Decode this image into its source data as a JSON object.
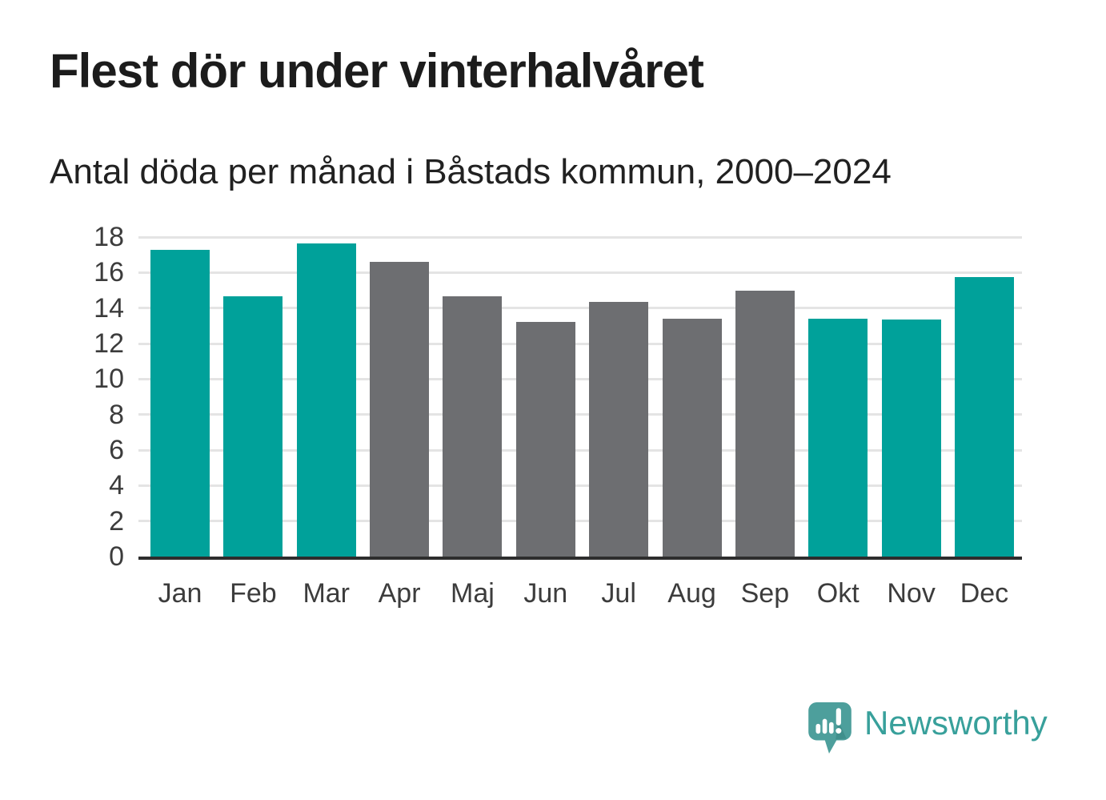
{
  "chart_data": {
    "type": "bar",
    "title": "Flest dör under vinterhalvåret",
    "subtitle": "Antal döda per månad i Båstads kommun, 2000–2024",
    "categories": [
      "Jan",
      "Feb",
      "Mar",
      "Apr",
      "Maj",
      "Jun",
      "Jul",
      "Aug",
      "Sep",
      "Okt",
      "Nov",
      "Dec"
    ],
    "values": [
      17.3,
      14.65,
      17.65,
      16.6,
      14.65,
      13.2,
      14.35,
      13.4,
      15.0,
      13.4,
      13.35,
      15.75
    ],
    "bar_colors": [
      "teal",
      "teal",
      "teal",
      "gray",
      "gray",
      "gray",
      "gray",
      "gray",
      "gray",
      "teal",
      "teal",
      "teal"
    ],
    "xlabel": "",
    "ylabel": "",
    "ylim": [
      0,
      18
    ],
    "yticks": [
      0,
      2,
      4,
      6,
      8,
      10,
      12,
      14,
      16,
      18
    ],
    "grid": "horizontal",
    "legend": "none"
  },
  "footer": {
    "brand": "Newsworthy"
  },
  "icons": {
    "logo": "newsworthy-speech-bubble-chart-icon"
  },
  "colors": {
    "bar_teal": "#00a19a",
    "bar_gray": "#6d6e71",
    "gridline": "#e4e4e4",
    "axis": "#2d2d2d",
    "title": "#1c1c1c",
    "subtitle": "#212121",
    "tick": "#3c3c3c",
    "logo_bubble": "#4d9f9c",
    "logo_fold": "#3f8f8c",
    "brand_text": "#38a09b"
  }
}
